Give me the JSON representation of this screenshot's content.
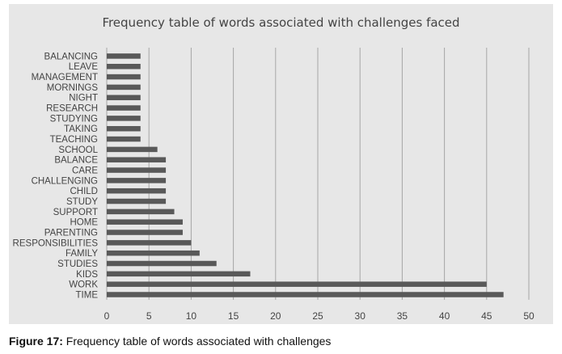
{
  "caption": {
    "lead": "Figure 17:",
    "text": " Frequency table of words associated with challenges"
  },
  "colors": {
    "panel_background": "#e7e7e7",
    "bar": "#595959",
    "gridline": "#a6a6a6",
    "text": "#444444"
  },
  "chart_data": {
    "type": "bar",
    "orientation": "horizontal",
    "title": "Frequency table of words associated with challenges faced",
    "xlabel": "",
    "ylabel": "",
    "xlim": [
      0,
      50
    ],
    "xticks": [
      0,
      5,
      10,
      15,
      20,
      25,
      30,
      35,
      40,
      45,
      50
    ],
    "grid": "vertical",
    "legend": "none",
    "categories": [
      "BALANCING",
      "LEAVE",
      "MANAGEMENT",
      "MORNINGS",
      "NIGHT",
      "RESEARCH",
      "STUDYING",
      "TAKING",
      "TEACHING",
      "SCHOOL",
      "BALANCE",
      "CARE",
      "CHALLENGING",
      "CHILD",
      "STUDY",
      "SUPPORT",
      "HOME",
      "PARENTING",
      "RESPONSIBILITIES",
      "FAMILY",
      "STUDIES",
      "KIDS",
      "WORK",
      "TIME"
    ],
    "values": [
      4,
      4,
      4,
      4,
      4,
      4,
      4,
      4,
      4,
      6,
      7,
      7,
      7,
      7,
      7,
      8,
      9,
      9,
      10,
      11,
      13,
      17,
      45,
      47
    ]
  }
}
